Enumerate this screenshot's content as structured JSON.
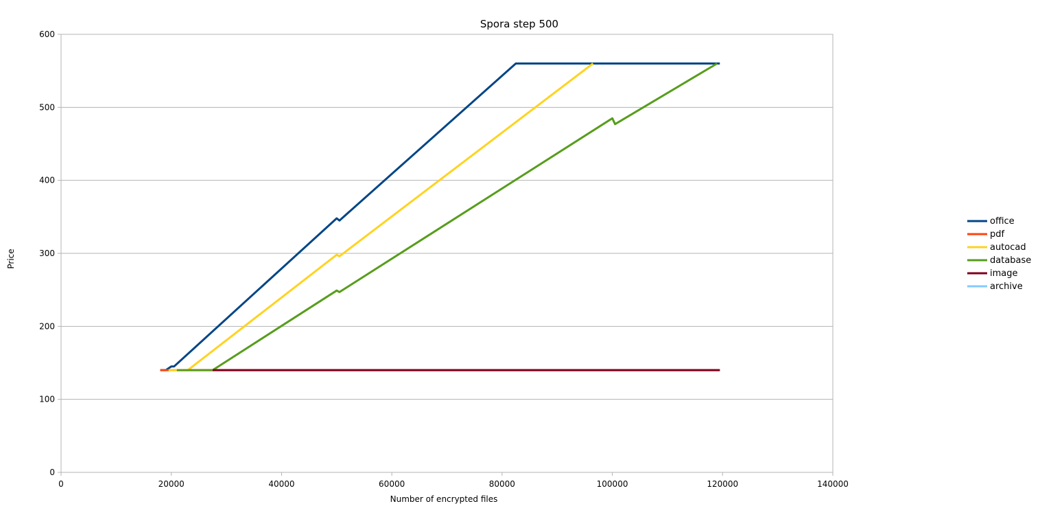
{
  "chart_data": {
    "type": "line",
    "title": "Spora step 500",
    "xlabel": "Number of encrypted files",
    "ylabel": "Price",
    "xlim": [
      0,
      140000
    ],
    "ylim": [
      0,
      600
    ],
    "xticks": [
      0,
      20000,
      40000,
      60000,
      80000,
      100000,
      120000,
      140000
    ],
    "yticks": [
      0,
      100,
      200,
      300,
      400,
      500,
      600
    ],
    "grid": "horizontal",
    "legend_position": "right",
    "series": [
      {
        "name": "office",
        "color": "#004586",
        "points": [
          [
            18000,
            140
          ],
          [
            19000,
            140
          ],
          [
            20000,
            145
          ],
          [
            20500,
            145
          ],
          [
            50000,
            348
          ],
          [
            50500,
            345
          ],
          [
            82500,
            560
          ],
          [
            119500,
            560
          ]
        ]
      },
      {
        "name": "pdf",
        "color": "#ff420e",
        "points": [
          [
            18000,
            140
          ],
          [
            119500,
            140
          ]
        ]
      },
      {
        "name": "autocad",
        "color": "#ffd320",
        "points": [
          [
            19500,
            140
          ],
          [
            23000,
            140
          ],
          [
            50000,
            298
          ],
          [
            50500,
            296
          ],
          [
            96500,
            560
          ]
        ]
      },
      {
        "name": "database",
        "color": "#579d1c",
        "points": [
          [
            21000,
            140
          ],
          [
            27500,
            140
          ],
          [
            50000,
            249
          ],
          [
            50500,
            247
          ],
          [
            100000,
            485
          ],
          [
            100500,
            477
          ],
          [
            119000,
            560
          ]
        ]
      },
      {
        "name": "image",
        "color": "#7e0021",
        "points": [
          [
            27500,
            140
          ],
          [
            119500,
            140
          ]
        ]
      },
      {
        "name": "archive",
        "color": "#83caff",
        "points": []
      }
    ]
  }
}
